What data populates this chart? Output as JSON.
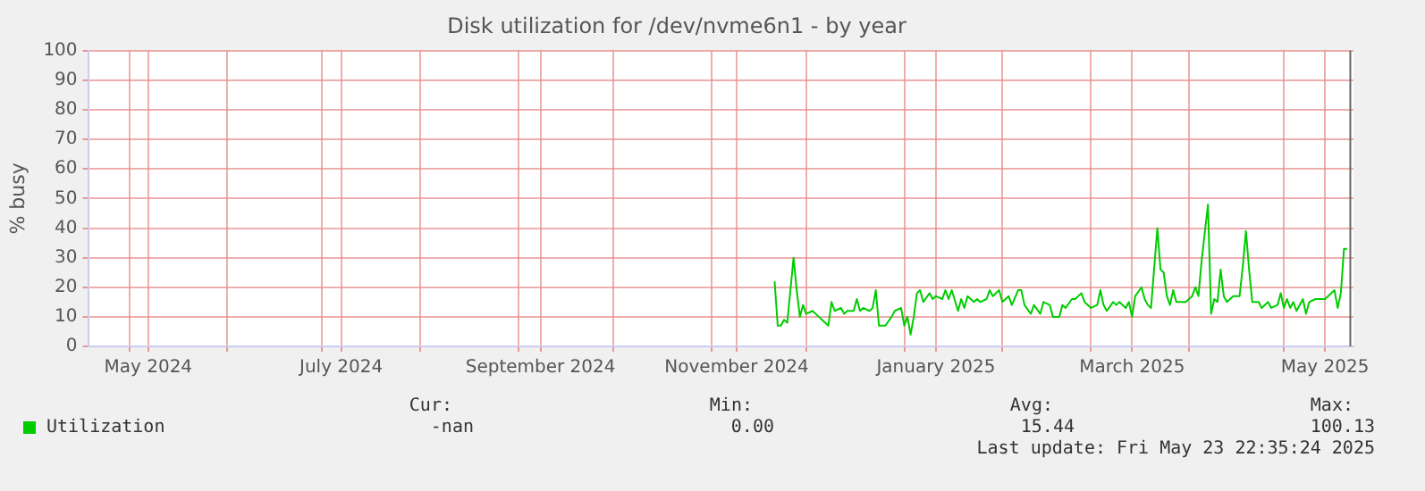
{
  "chart_data": {
    "type": "line",
    "title": "Disk utilization for /dev/nvme6n1 - by year",
    "ylabel": "% busy",
    "xlim": [
      "2024-04-18",
      "2025-05-23"
    ],
    "ylim": [
      0,
      100
    ],
    "yticks": [
      0,
      10,
      20,
      30,
      40,
      50,
      60,
      70,
      80,
      90,
      100
    ],
    "xticks": [
      {
        "value": "2024-05-01",
        "label": null
      },
      {
        "value": "2024-05-07",
        "label": "May 2024"
      },
      {
        "value": "2024-06-01",
        "label": null
      },
      {
        "value": "2024-07-01",
        "label": null
      },
      {
        "value": "2024-07-07",
        "label": "July 2024"
      },
      {
        "value": "2024-08-01",
        "label": null
      },
      {
        "value": "2024-09-01",
        "label": null
      },
      {
        "value": "2024-09-08",
        "label": "September 2024"
      },
      {
        "value": "2024-10-01",
        "label": null
      },
      {
        "value": "2024-11-01",
        "label": null
      },
      {
        "value": "2024-11-09",
        "label": "November 2024"
      },
      {
        "value": "2024-12-01",
        "label": null
      },
      {
        "value": "2025-01-01",
        "label": null
      },
      {
        "value": "2025-01-11",
        "label": "January 2025"
      },
      {
        "value": "2025-02-01",
        "label": null
      },
      {
        "value": "2025-03-01",
        "label": null
      },
      {
        "value": "2025-03-14",
        "label": "March 2025"
      },
      {
        "value": "2025-04-01",
        "label": null
      },
      {
        "value": "2025-05-01",
        "label": null
      },
      {
        "value": "2025-05-14",
        "label": "May 2025"
      }
    ],
    "grid": true,
    "legend": "bottom left",
    "marker": "none",
    "line_style": "solid",
    "ref_lines": [
      {
        "axis": "x",
        "value": "2025-05-22",
        "color": "#666666"
      }
    ],
    "annotations": [
      "Cur:",
      "-nan",
      "Min:",
      "0.00",
      "Avg:",
      "15.44",
      "Max:",
      "100.13",
      "Last update: Fri May 23 22:35:24 2025"
    ],
    "series": [
      {
        "name": "Utilization",
        "color": "#00cc00",
        "x": [
          "2024-11-21",
          "2024-11-22",
          "2024-11-23",
          "2024-11-24",
          "2024-11-25",
          "2024-11-27",
          "2024-11-28",
          "2024-11-29",
          "2024-11-30",
          "2024-12-01",
          "2024-12-03",
          "2024-12-05",
          "2024-12-06",
          "2024-12-08",
          "2024-12-09",
          "2024-12-10",
          "2024-12-12",
          "2024-12-13",
          "2024-12-14",
          "2024-12-16",
          "2024-12-17",
          "2024-12-18",
          "2024-12-19",
          "2024-12-21",
          "2024-12-22",
          "2024-12-23",
          "2024-12-24",
          "2024-12-25",
          "2024-12-26",
          "2024-12-28",
          "2024-12-29",
          "2024-12-31",
          "2025-01-01",
          "2025-01-02",
          "2025-01-03",
          "2025-01-04",
          "2025-01-05",
          "2025-01-06",
          "2025-01-07",
          "2025-01-09",
          "2025-01-10",
          "2025-01-11",
          "2025-01-13",
          "2025-01-14",
          "2025-01-15",
          "2025-01-16",
          "2025-01-18",
          "2025-01-19",
          "2025-01-20",
          "2025-01-21",
          "2025-01-23",
          "2025-01-24",
          "2025-01-25",
          "2025-01-27",
          "2025-01-28",
          "2025-01-29",
          "2025-01-31",
          "2025-02-01",
          "2025-02-03",
          "2025-02-04",
          "2025-02-06",
          "2025-02-07",
          "2025-02-08",
          "2025-02-10",
          "2025-02-11",
          "2025-02-13",
          "2025-02-14",
          "2025-02-16",
          "2025-02-17",
          "2025-02-19",
          "2025-02-20",
          "2025-02-21",
          "2025-02-23",
          "2025-02-24",
          "2025-02-26",
          "2025-02-27",
          "2025-03-01",
          "2025-03-03",
          "2025-03-04",
          "2025-03-05",
          "2025-03-06",
          "2025-03-08",
          "2025-03-09",
          "2025-03-10",
          "2025-03-12",
          "2025-03-13",
          "2025-03-14",
          "2025-03-15",
          "2025-03-17",
          "2025-03-18",
          "2025-03-19",
          "2025-03-20",
          "2025-03-22",
          "2025-03-23",
          "2025-03-24",
          "2025-03-25",
          "2025-03-26",
          "2025-03-27",
          "2025-03-28",
          "2025-03-30",
          "2025-03-31",
          "2025-04-02",
          "2025-04-03",
          "2025-04-04",
          "2025-04-05",
          "2025-04-07",
          "2025-04-08",
          "2025-04-09",
          "2025-04-10",
          "2025-04-11",
          "2025-04-12",
          "2025-04-13",
          "2025-04-14",
          "2025-04-15",
          "2025-04-17",
          "2025-04-18",
          "2025-04-19",
          "2025-04-20",
          "2025-04-21",
          "2025-04-23",
          "2025-04-24",
          "2025-04-26",
          "2025-04-27",
          "2025-04-29",
          "2025-04-30",
          "2025-05-01",
          "2025-05-02",
          "2025-05-03",
          "2025-05-04",
          "2025-05-05",
          "2025-05-07",
          "2025-05-08",
          "2025-05-09",
          "2025-05-11",
          "2025-05-12",
          "2025-05-14",
          "2025-05-15",
          "2025-05-17",
          "2025-05-18",
          "2025-05-19",
          "2025-05-20",
          "2025-05-21"
        ],
        "values": [
          22,
          7,
          7,
          9,
          8,
          30,
          19,
          10,
          14,
          11,
          12,
          10,
          9,
          7,
          15,
          12,
          13,
          11,
          12,
          12,
          16,
          12,
          13,
          12,
          13,
          19,
          7,
          7,
          7,
          10,
          12,
          13,
          7,
          10,
          4,
          10,
          18,
          19,
          15,
          18,
          16,
          17,
          16,
          19,
          16,
          19,
          12,
          16,
          13,
          17,
          15,
          16,
          15,
          16,
          19,
          17,
          19,
          15,
          17,
          14,
          19,
          19,
          14,
          11,
          14,
          11,
          15,
          14,
          10,
          10,
          14,
          13,
          16,
          16,
          18,
          15,
          13,
          14,
          19,
          14,
          12,
          15,
          14,
          15,
          13,
          15,
          10,
          17,
          20,
          16,
          14,
          13,
          40,
          26,
          25,
          17,
          14,
          19,
          15,
          15,
          15,
          17,
          20,
          17,
          29,
          48,
          11,
          16,
          15,
          26,
          17,
          15,
          16,
          17,
          17,
          27,
          39,
          26,
          15,
          15,
          13,
          15,
          13,
          14,
          18,
          13,
          16,
          13,
          15,
          12,
          16,
          11,
          15,
          16,
          16,
          16,
          17,
          19,
          13,
          18,
          33,
          33
        ]
      }
    ]
  }
}
